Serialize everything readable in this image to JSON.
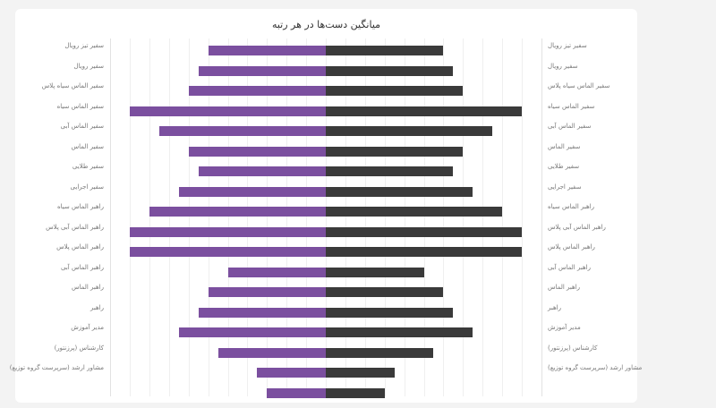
{
  "card": {
    "title": "میانگین دست‌ها در هر رتبه"
  },
  "colors": {
    "left_series": "#7b4f9f",
    "right_series": "#3a3a3a",
    "background": "#f3f3f3",
    "card": "#ffffff",
    "gridline": "#efefef"
  },
  "chart_data": {
    "type": "bar",
    "orientation": "horizontal-diverging",
    "title": "میانگین دست‌ها در هر رتبه",
    "xlabel": "",
    "ylabel": "",
    "grid": true,
    "legend": null,
    "xlim": [
      -11,
      11
    ],
    "categories": [
      "سفیر تیز رویال",
      "سفیر رویال",
      "سفیر الماس سیاه پلاس",
      "سفیر الماس سیاه",
      "سفیر الماس آبی",
      "سفیر الماس",
      "سفیر طلایی",
      "سفیر اجرایی",
      "راهبر الماس سیاه",
      "راهبر الماس آبی پلاس",
      "راهبر الماس پلاس",
      "راهبر الماس آبی",
      "راهبر الماس",
      "راهبر",
      "مدیر آموزش",
      "کارشناس (پرزنتور)",
      "مشاور ارشد (سرپرست گروه توزیع)",
      ""
    ],
    "series": [
      {
        "name": "left",
        "color": "#7b4f9f",
        "values": [
          6,
          6.5,
          7,
          10,
          8.5,
          7,
          6.5,
          7.5,
          9,
          10,
          10,
          5,
          6,
          6.5,
          7.5,
          5.5,
          3.5,
          3
        ]
      },
      {
        "name": "right",
        "color": "#3a3a3a",
        "values": [
          6,
          6.5,
          7,
          10,
          8.5,
          7,
          6.5,
          7.5,
          9,
          10,
          10,
          5,
          6,
          6.5,
          7.5,
          5.5,
          3.5,
          3
        ]
      }
    ]
  }
}
